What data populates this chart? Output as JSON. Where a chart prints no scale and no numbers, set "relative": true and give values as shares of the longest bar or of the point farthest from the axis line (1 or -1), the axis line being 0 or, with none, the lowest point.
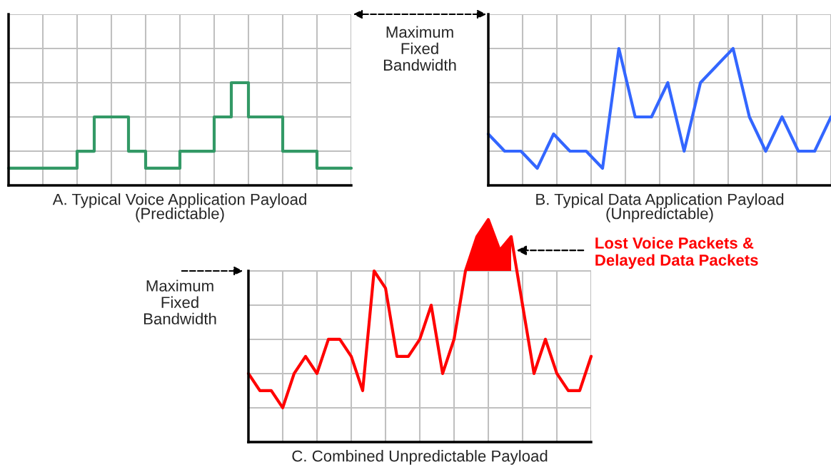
{
  "chart_data": [
    {
      "type": "step",
      "relative": true,
      "xlabel": "A. Typical Voice Application Payload\n(Predictable)",
      "grid": true,
      "categories": [
        null,
        null,
        null,
        null,
        null,
        null,
        null,
        null,
        null,
        null,
        null,
        null,
        null,
        null,
        null,
        null,
        null,
        null,
        null,
        null,
        null
      ],
      "ref_lines": [
        {
          "axis": "y",
          "value": 1.667,
          "label": "Maximum\nFixed\nBandwidth"
        }
      ],
      "series": [
        {
          "color": "#339966",
          "values": [
            0.167,
            0.167,
            0.167,
            0.167,
            0.333,
            0.667,
            0.667,
            0.333,
            0.167,
            0.167,
            0.333,
            0.333,
            0.667,
            1,
            0.667,
            0.667,
            0.333,
            0.333,
            0.167,
            0.167,
            0.167
          ]
        }
      ]
    },
    {
      "type": "line",
      "relative": true,
      "xlabel": "B. Typical Data Application Payload\n(Unpredictable)",
      "grid": true,
      "categories": [
        null,
        null,
        null,
        null,
        null,
        null,
        null,
        null,
        null,
        null,
        null,
        null,
        null,
        null,
        null,
        null,
        null,
        null,
        null,
        null,
        null,
        null
      ],
      "ref_lines": [
        {
          "axis": "y",
          "value": 1.25
        }
      ],
      "series": [
        {
          "color": "#3366ff",
          "values": [
            0.375,
            0.25,
            0.25,
            0.125,
            0.375,
            0.25,
            0.25,
            0.125,
            1,
            0.5,
            0.5,
            0.75,
            0.25,
            0.75,
            0.875,
            1,
            0.5,
            0.25,
            0.5,
            0.25,
            0.25,
            0.5
          ]
        }
      ]
    },
    {
      "type": "line",
      "relative": true,
      "xlabel": "C. Combined Unpredictable Payload",
      "grid": true,
      "categories": [
        null,
        null,
        null,
        null,
        null,
        null,
        null,
        null,
        null,
        null,
        null,
        null,
        null,
        null,
        null,
        null,
        null,
        null,
        null,
        null,
        null,
        null,
        null,
        null,
        null,
        null,
        null,
        null,
        null,
        null,
        null
      ],
      "ref_lines": [
        {
          "axis": "y",
          "value": 0.769,
          "label": "Maximum\nFixed\nBandwidth"
        }
      ],
      "annotations": [
        "Lost Voice Packets &\nDelayed Data Packets"
      ],
      "series": [
        {
          "color": "#ff0000",
          "values": [
            0.308,
            0.231,
            0.231,
            0.154,
            0.308,
            0.385,
            0.308,
            0.462,
            0.462,
            0.385,
            0.231,
            0.769,
            0.692,
            0.385,
            0.385,
            0.462,
            0.615,
            0.308,
            0.462,
            0.769,
            0.923,
            1,
            0.862,
            0.923,
            0.615,
            0.308,
            0.462,
            0.308,
            0.231,
            0.231,
            0.385
          ],
          "lower": [
            null,
            null,
            null,
            null,
            null,
            null,
            null,
            null,
            null,
            null,
            null,
            null,
            null,
            null,
            null,
            null,
            null,
            null,
            null,
            0.769,
            0.769,
            0.769,
            0.769,
            0.769,
            null,
            null,
            null,
            null,
            null,
            null,
            null
          ],
          "upper": [
            null,
            null,
            null,
            null,
            null,
            null,
            null,
            null,
            null,
            null,
            null,
            null,
            null,
            null,
            null,
            null,
            null,
            null,
            null,
            0.769,
            0.923,
            1,
            0.862,
            0.923,
            null,
            null,
            null,
            null,
            null,
            null,
            null
          ]
        }
      ]
    }
  ]
}
